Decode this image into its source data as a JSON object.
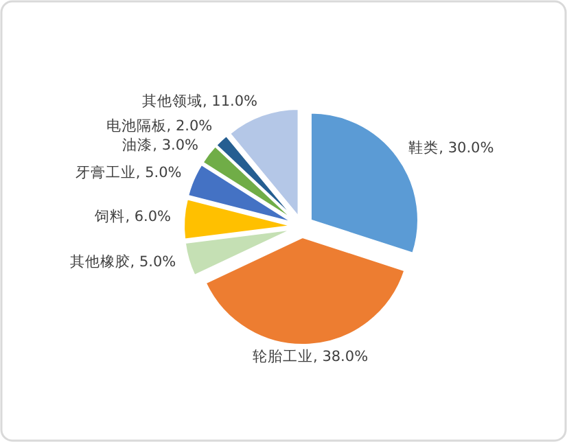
{
  "chart_data": {
    "type": "pie",
    "categories": [
      "鞋类",
      "轮胎工业",
      "其他橡胶",
      "饲料",
      "牙膏工业",
      "油漆",
      "电池隔板",
      "其他领域"
    ],
    "values": [
      30,
      38,
      5,
      6,
      5,
      3,
      2,
      11
    ],
    "value_labels": [
      "30.0%",
      "38.0%",
      "5.0%",
      "6.0%",
      "5.0%",
      "3.0%",
      "2.0%",
      "11.0%"
    ],
    "colors": [
      "#5b9bd5",
      "#ed7d31",
      "#c5e0b4",
      "#ffc000",
      "#4472c4",
      "#70ad47",
      "#255e91",
      "#b4c7e7"
    ]
  }
}
